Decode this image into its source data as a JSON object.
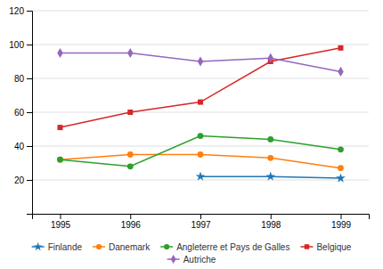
{
  "chart_data": {
    "type": "line",
    "x": [
      1995,
      1996,
      1997,
      1998,
      1999
    ],
    "series": [
      {
        "name": "Finlande",
        "marker": "star",
        "values": [
          null,
          null,
          22,
          22,
          21
        ]
      },
      {
        "name": "Danemark",
        "marker": "circle",
        "values": [
          32,
          35,
          35,
          33,
          27
        ]
      },
      {
        "name": "Angleterre et Pays de Galles",
        "marker": "circle",
        "values": [
          32,
          28,
          46,
          44,
          38
        ]
      },
      {
        "name": "Belgique",
        "marker": "square",
        "values": [
          51,
          60,
          66,
          90,
          98
        ]
      },
      {
        "name": "Autriche",
        "marker": "diamond",
        "values": [
          95,
          95,
          90,
          92,
          84
        ]
      }
    ],
    "xlim": [
      1994.6,
      1999.4
    ],
    "xticks": [
      1995,
      1996,
      1997,
      1998,
      1999
    ],
    "ylim": [
      0,
      120
    ],
    "yticks": [
      20,
      40,
      60,
      80,
      100,
      120
    ],
    "grid": true,
    "legend": "bottom"
  }
}
